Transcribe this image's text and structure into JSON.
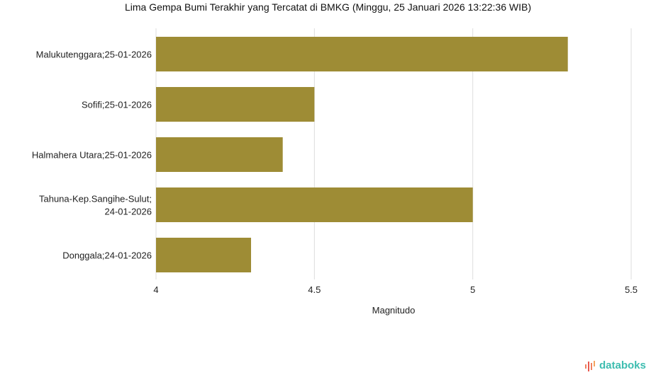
{
  "chart_data": {
    "type": "bar",
    "orientation": "horizontal",
    "title": "Lima Gempa Bumi Terakhir yang Tercatat di BMKG (Minggu, 25 Januari 2026 13:22:36 WIB)",
    "categories": [
      [
        "Malukutenggara;25-01-2026"
      ],
      [
        "Sofifi;25-01-2026"
      ],
      [
        "Halmahera Utara;25-01-2026"
      ],
      [
        "Tahuna-Kep.Sangihe-Sulut;",
        "24-01-2026"
      ],
      [
        "Donggala;24-01-2026"
      ]
    ],
    "values": [
      5.3,
      4.5,
      4.4,
      5.0,
      4.3
    ],
    "xlabel": "Magnitudo",
    "xlim": [
      4,
      5.5
    ],
    "xticks": [
      "4",
      "4.5",
      "5",
      "5.5"
    ],
    "grid": true,
    "bar_color": "#9e8c35"
  },
  "brand": "databoks"
}
